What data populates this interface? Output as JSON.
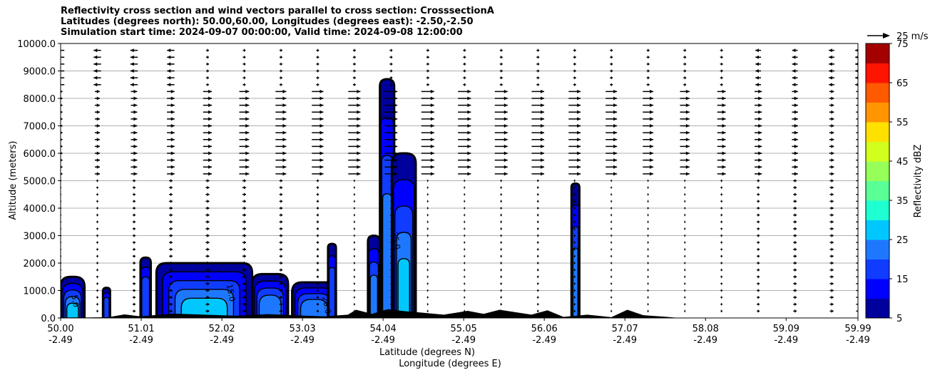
{
  "chart_data": {
    "type": "heatmap",
    "title_lines": [
      "Reflectivity cross section and wind vectors parallel to cross section: CrosssectionA",
      "Latitudes (degrees north): 50.00,60.00, Longitudes (degrees east): -2.50,-2.50",
      "Simulation start time: 2024-09-07 00:00:00, Valid time: 2024-09-08 12:00:00"
    ],
    "ylabel": "Altitude (meters)",
    "xlabel_lat": "Latitude (degrees N)",
    "xlabel_lon": "Longitude (degrees E)",
    "ylim": [
      0,
      10000
    ],
    "xlim": [
      50.0,
      59.99
    ],
    "yticks": [
      "0.0",
      "1000.0",
      "2000.0",
      "3000.0",
      "4000.0",
      "5000.0",
      "6000.0",
      "7000.0",
      "8000.0",
      "9000.0",
      "10000.0"
    ],
    "xticks_lat": [
      "50.00",
      "51.01",
      "52.02",
      "53.03",
      "54.04",
      "55.05",
      "56.06",
      "57.07",
      "58.08",
      "59.09",
      "59.99"
    ],
    "xticks_lon": [
      "-2.49",
      "-2.49",
      "-2.49",
      "-2.49",
      "-2.49",
      "-2.49",
      "-2.49",
      "-2.49",
      "-2.49",
      "-2.49",
      "-2.49"
    ],
    "grid": "horizontal",
    "colorbar": {
      "label": "Reflectivity dBZ",
      "ticks": [
        "5",
        "15",
        "25",
        "35",
        "45",
        "55",
        "65",
        "75"
      ],
      "levels": [
        5,
        10,
        15,
        20,
        25,
        30,
        35,
        40,
        45,
        50,
        55,
        60,
        65,
        70,
        75
      ],
      "colors": [
        "#00009c",
        "#0000ff",
        "#0f3cff",
        "#1e78ff",
        "#00c8ff",
        "#1effd2",
        "#5aff96",
        "#96ff5a",
        "#d2ff1e",
        "#ffe100",
        "#ff9600",
        "#ff5a00",
        "#ff1400",
        "#a50000"
      ]
    },
    "quiver_key": "25 m/s",
    "contour_labels": [
      "5.0",
      "15.0",
      "25.0",
      "20.0"
    ],
    "terrain_color": "#000000",
    "echoes": [
      {
        "lat_from": 50.0,
        "lat_to": 50.3,
        "top_m": 1500,
        "max_dbz": 25
      },
      {
        "lat_from": 50.53,
        "lat_to": 50.62,
        "top_m": 1100,
        "max_dbz": 15
      },
      {
        "lat_from": 51.0,
        "lat_to": 51.13,
        "top_m": 2200,
        "max_dbz": 15
      },
      {
        "lat_from": 51.2,
        "lat_to": 52.4,
        "top_m": 2000,
        "max_dbz": 25
      },
      {
        "lat_from": 52.4,
        "lat_to": 52.85,
        "top_m": 1600,
        "max_dbz": 20
      },
      {
        "lat_from": 52.9,
        "lat_to": 53.45,
        "top_m": 1300,
        "max_dbz": 20
      },
      {
        "lat_from": 53.35,
        "lat_to": 53.45,
        "top_m": 2700,
        "max_dbz": 15
      },
      {
        "lat_from": 53.85,
        "lat_to": 54.0,
        "top_m": 3000,
        "max_dbz": 20
      },
      {
        "lat_from": 54.0,
        "lat_to": 54.18,
        "top_m": 8700,
        "max_dbz": 20
      },
      {
        "lat_from": 54.15,
        "lat_to": 54.45,
        "top_m": 6000,
        "max_dbz": 25
      },
      {
        "lat_from": 56.4,
        "lat_to": 56.5,
        "top_m": 4900,
        "max_dbz": 20
      }
    ],
    "wind_levels_m": [
      250,
      500,
      750,
      1000,
      1250,
      1500,
      1750,
      2000,
      2250,
      2500,
      2750,
      3000,
      3250,
      3500,
      3750,
      4000,
      4250,
      4500,
      4750,
      5000,
      5250,
      5500,
      5750,
      6000,
      6250,
      6500,
      6750,
      7000,
      7250,
      7500,
      7750,
      8000,
      8250,
      8500,
      8750,
      9000,
      9250,
      9500,
      9750
    ],
    "wind_columns_lat": [
      50.0,
      50.46,
      50.92,
      51.38,
      51.84,
      52.3,
      52.76,
      53.22,
      53.68,
      54.14,
      54.6,
      55.06,
      55.52,
      55.98,
      56.44,
      56.9,
      57.36,
      57.82,
      58.28,
      58.74,
      59.2,
      59.66,
      59.99
    ]
  }
}
